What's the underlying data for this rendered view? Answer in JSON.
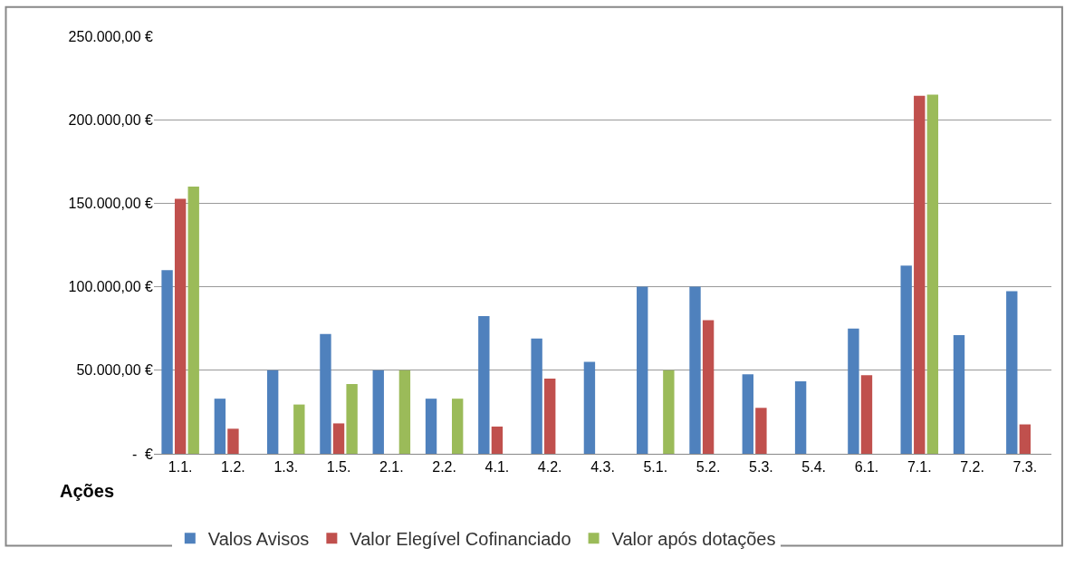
{
  "chart_data": {
    "type": "bar",
    "xlabel": "Ações",
    "categories": [
      "1.1.",
      "1.2.",
      "1.3.",
      "1.5.",
      "2.1.",
      "2.2.",
      "4.1.",
      "4.2.",
      "4.3.",
      "5.1.",
      "5.2.",
      "5.3.",
      "5.4.",
      "6.1.",
      "7.1.",
      "7.2.",
      "7.3."
    ],
    "series": [
      {
        "name": "Valos Avisos",
        "color": "#4f81bd",
        "values": [
          110000,
          33000,
          50000,
          71700,
          50000,
          33000,
          82400,
          69000,
          55000,
          100000,
          100000,
          47600,
          43400,
          75000,
          112600,
          71000,
          97300
        ]
      },
      {
        "name": "Valor Elegível Cofinanciado",
        "color": "#c0504d",
        "values": [
          152600,
          15000,
          null,
          18200,
          null,
          null,
          16300,
          45000,
          null,
          null,
          80000,
          27500,
          null,
          47000,
          214400,
          null,
          17600
        ]
      },
      {
        "name": "Valor após dotações",
        "color": "#9bbb59",
        "values": [
          160000,
          null,
          29500,
          41700,
          50000,
          33000,
          null,
          null,
          null,
          50000,
          null,
          null,
          null,
          null,
          215000,
          null,
          null
        ]
      }
    ],
    "ylim": [
      0,
      250000
    ],
    "yticks": [
      {
        "value": 0,
        "label": "-  €"
      },
      {
        "value": 50000,
        "label": "50.000,00 €"
      },
      {
        "value": 100000,
        "label": "100.000,00 €"
      },
      {
        "value": 150000,
        "label": "150.000,00 €"
      },
      {
        "value": 200000,
        "label": "200.000,00 €"
      },
      {
        "value": 250000,
        "label": "250.000,00 €"
      }
    ],
    "grid": "y",
    "legend": "bottom"
  }
}
